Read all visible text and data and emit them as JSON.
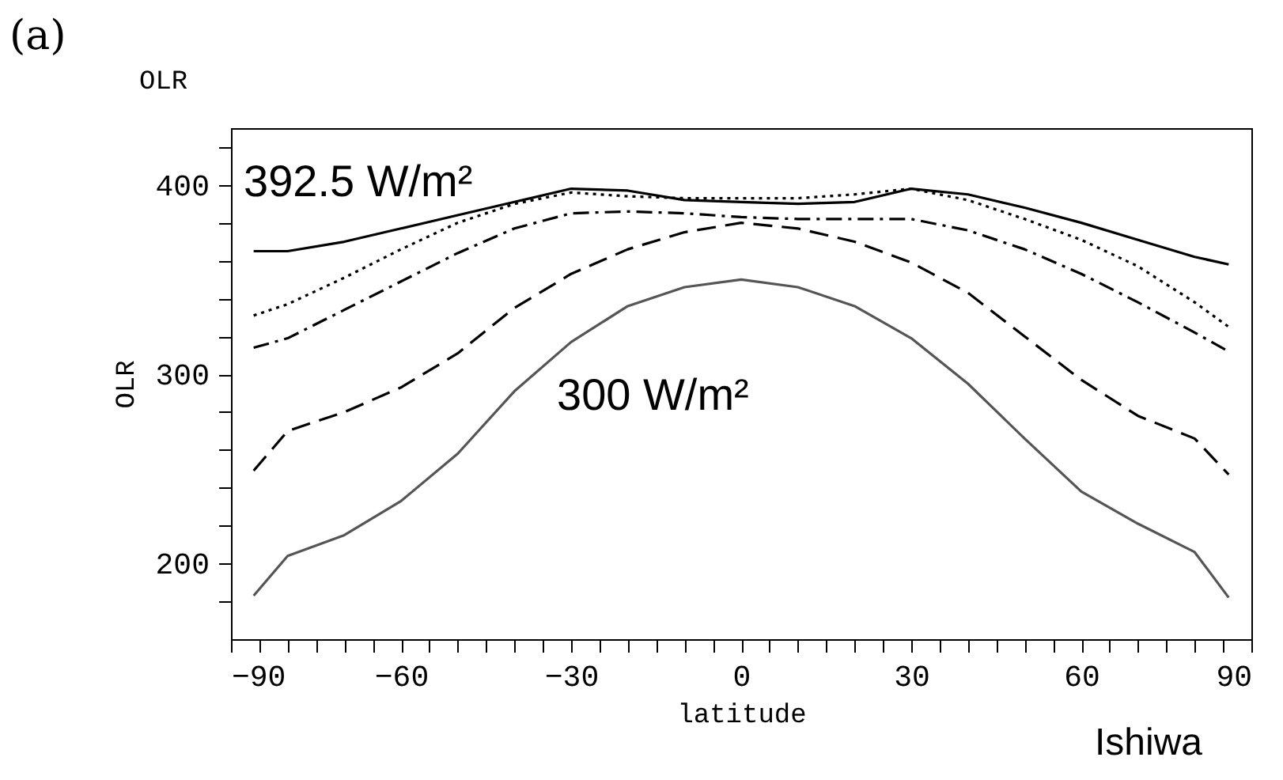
{
  "chart_data": {
    "type": "line",
    "title": "OLR",
    "xlabel": "latitude",
    "ylabel": "OLR",
    "x": [
      -86,
      -80,
      -70,
      -60,
      -50,
      -40,
      -30,
      -20,
      -10,
      0,
      10,
      20,
      30,
      40,
      50,
      60,
      70,
      80,
      86
    ],
    "series": [
      {
        "color": "#000000",
        "line_style": "solid",
        "values": [
          365,
          365,
          370,
          377,
          384,
          391,
          398,
          397,
          392,
          391,
          390,
          391,
          398,
          395,
          388,
          380,
          371,
          362,
          358
        ]
      },
      {
        "color": "#000000",
        "line_style": "dotted",
        "values": [
          331,
          337,
          351,
          366,
          380,
          390,
          396,
          394,
          393,
          393,
          393,
          395,
          398,
          392,
          382,
          371,
          357,
          338,
          325
        ]
      },
      {
        "color": "#000000",
        "line_style": "dashdot",
        "values": [
          314,
          319,
          334,
          349,
          364,
          377,
          385,
          386,
          385,
          383,
          382,
          382,
          382,
          376,
          366,
          353,
          338,
          322,
          312
        ]
      },
      {
        "color": "#000000",
        "line_style": "dashed",
        "values": [
          249,
          270,
          280,
          293,
          311,
          335,
          353,
          366,
          375,
          380,
          377,
          370,
          359,
          343,
          320,
          297,
          278,
          266,
          247
        ]
      },
      {
        "color": "#555555",
        "line_style": "solid",
        "values": [
          183,
          204,
          215,
          233,
          258,
          291,
          317,
          336,
          346,
          350,
          346,
          336,
          319,
          295,
          266,
          238,
          221,
          206,
          182
        ]
      }
    ],
    "xlim": [
      -90,
      90
    ],
    "xticks": [
      -90,
      {
        "value": -85,
        "label": null
      },
      {
        "value": -80,
        "label": null
      },
      {
        "value": -75,
        "label": null
      },
      {
        "value": -70,
        "label": null
      },
      {
        "value": -65,
        "label": null
      },
      -60,
      {
        "value": -55,
        "label": null
      },
      {
        "value": -50,
        "label": null
      },
      {
        "value": -45,
        "label": null
      },
      {
        "value": -40,
        "label": null
      },
      {
        "value": -35,
        "label": null
      },
      -30,
      {
        "value": -25,
        "label": null
      },
      {
        "value": -20,
        "label": null
      },
      {
        "value": -15,
        "label": null
      },
      {
        "value": -10,
        "label": null
      },
      {
        "value": -5,
        "label": null
      },
      0,
      {
        "value": 5,
        "label": null
      },
      {
        "value": 10,
        "label": null
      },
      {
        "value": 15,
        "label": null
      },
      {
        "value": 20,
        "label": null
      },
      {
        "value": 25,
        "label": null
      },
      30,
      {
        "value": 35,
        "label": null
      },
      {
        "value": 40,
        "label": null
      },
      {
        "value": 45,
        "label": null
      },
      {
        "value": 50,
        "label": null
      },
      {
        "value": 55,
        "label": null
      },
      60,
      {
        "value": 65,
        "label": null
      },
      {
        "value": 70,
        "label": null
      },
      {
        "value": 75,
        "label": null
      },
      {
        "value": 80,
        "label": null
      },
      {
        "value": 85,
        "label": null
      },
      90
    ],
    "ylim": [
      160,
      430
    ],
    "yticks": [
      {
        "value": 180,
        "label": null
      },
      200,
      {
        "value": 220,
        "label": null
      },
      {
        "value": 240,
        "label": null
      },
      {
        "value": 260,
        "label": null
      },
      {
        "value": 280,
        "label": null
      },
      300,
      {
        "value": 320,
        "label": null
      },
      {
        "value": 340,
        "label": null
      },
      {
        "value": 360,
        "label": null
      },
      {
        "value": 380,
        "label": null
      },
      400,
      {
        "value": 420,
        "label": null
      }
    ],
    "grid": false,
    "marker": "none",
    "annotations": [
      "(a)",
      "392.5 W/m²",
      "300 W/m²",
      "Ishiwa"
    ]
  }
}
